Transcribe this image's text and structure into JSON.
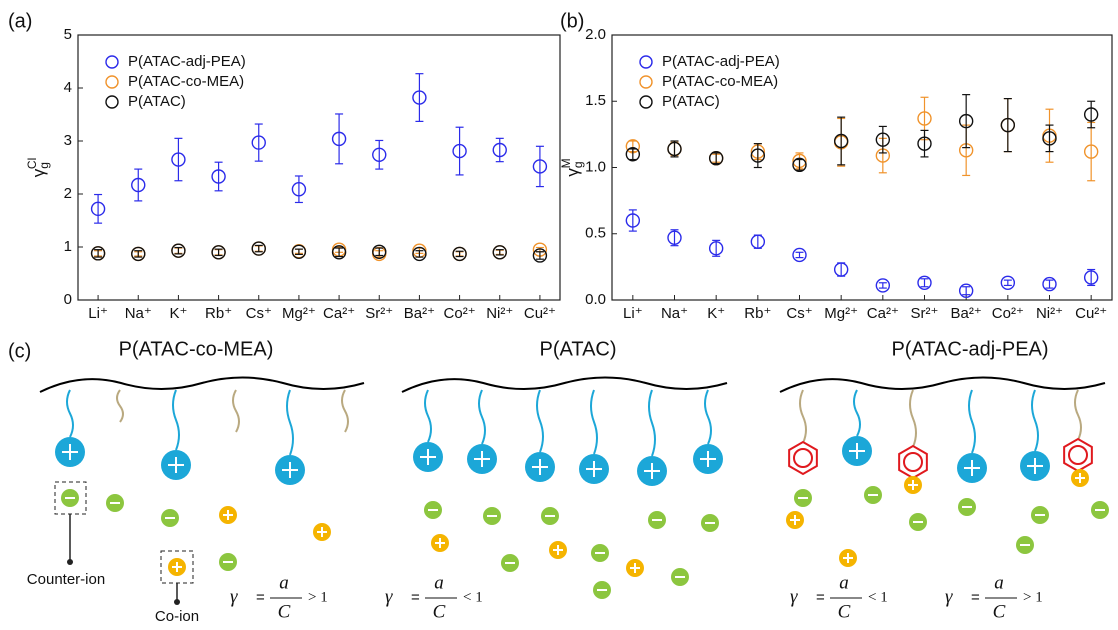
{
  "chart_data": [
    {
      "type": "scatter",
      "panel_label": "(a)",
      "ylabel": {
        "symbol": "γ",
        "sub": "g",
        "sup": "Cl"
      },
      "categories": [
        "Li⁺",
        "Na⁺",
        "K⁺",
        "Rb⁺",
        "Cs⁺",
        "Mg²⁺",
        "Ca²⁺",
        "Sr²⁺",
        "Ba²⁺",
        "Co²⁺",
        "Ni²⁺",
        "Cu²⁺"
      ],
      "ylim": [
        0,
        5
      ],
      "yticks": [
        0,
        1,
        2,
        3,
        4,
        5
      ],
      "legend": "upper left",
      "series": [
        {
          "name": "P(ATAC-adj-PEA)",
          "color": "#2b2bea",
          "values": [
            1.72,
            2.17,
            2.65,
            2.33,
            2.97,
            2.09,
            3.04,
            2.74,
            3.82,
            2.81,
            2.83,
            2.52
          ],
          "errors": [
            0.27,
            0.3,
            0.4,
            0.27,
            0.35,
            0.25,
            0.47,
            0.27,
            0.45,
            0.45,
            0.22,
            0.38
          ]
        },
        {
          "name": "P(ATAC-co-MEA)",
          "color": "#f0932b",
          "values": [
            0.88,
            0.87,
            0.93,
            0.9,
            0.97,
            0.92,
            0.95,
            0.87,
            0.93,
            0.87,
            0.9,
            0.95
          ],
          "errors": [
            0.05,
            0.04,
            0.05,
            0.05,
            0.05,
            0.04,
            0.05,
            0.06,
            0.05,
            0.04,
            0.04,
            0.04
          ]
        },
        {
          "name": "P(ATAC)",
          "color": "#111111",
          "values": [
            0.88,
            0.87,
            0.93,
            0.9,
            0.97,
            0.91,
            0.9,
            0.91,
            0.87,
            0.87,
            0.9,
            0.84
          ],
          "errors": [
            0.07,
            0.06,
            0.06,
            0.06,
            0.06,
            0.05,
            0.08,
            0.07,
            0.06,
            0.05,
            0.05,
            0.07
          ]
        }
      ]
    },
    {
      "type": "scatter",
      "panel_label": "(b)",
      "ylabel": {
        "symbol": "γ",
        "sub": "g",
        "sup": "M"
      },
      "categories": [
        "Li⁺",
        "Na⁺",
        "K⁺",
        "Rb⁺",
        "Cs⁺",
        "Mg²⁺",
        "Ca²⁺",
        "Sr²⁺",
        "Ba²⁺",
        "Co²⁺",
        "Ni²⁺",
        "Cu²⁺"
      ],
      "ylim": [
        0,
        2
      ],
      "yticks": [
        {
          "value": 0,
          "label": "0.0"
        },
        {
          "value": 0.5,
          "label": "0.5"
        },
        {
          "value": 1,
          "label": "1.0"
        },
        {
          "value": 1.5,
          "label": "1.5"
        },
        {
          "value": 2,
          "label": "2.0"
        }
      ],
      "legend": "upper left",
      "series": [
        {
          "name": "P(ATAC-adj-PEA)",
          "color": "#2b2bea",
          "values": [
            0.6,
            0.47,
            0.39,
            0.44,
            0.34,
            0.23,
            0.11,
            0.13,
            0.07,
            0.13,
            0.12,
            0.17
          ],
          "errors": [
            0.08,
            0.06,
            0.06,
            0.05,
            0.02,
            0.05,
            0.02,
            0.03,
            0.03,
            0.02,
            0.03,
            0.06
          ]
        },
        {
          "name": "P(ATAC-co-MEA)",
          "color": "#f0932b",
          "values": [
            1.16,
            1.14,
            1.07,
            1.12,
            1.05,
            1.19,
            1.09,
            1.37,
            1.13,
            1.32,
            1.24,
            1.12
          ],
          "errors": [
            0.04,
            0.05,
            0.03,
            0.06,
            0.06,
            0.18,
            0.13,
            0.16,
            0.19,
            0.2,
            0.2,
            0.22
          ]
        },
        {
          "name": "P(ATAC)",
          "color": "#111111",
          "values": [
            1.1,
            1.14,
            1.07,
            1.09,
            1.02,
            1.2,
            1.21,
            1.18,
            1.35,
            1.32,
            1.22,
            1.4
          ],
          "errors": [
            0.04,
            0.06,
            0.04,
            0.09,
            0.04,
            0.18,
            0.1,
            0.1,
            0.2,
            0.2,
            0.1,
            0.1
          ]
        }
      ]
    }
  ],
  "panel_c": {
    "label": "(c)",
    "titles": [
      "P(ATAC-co-MEA)",
      "P(ATAC)",
      "P(ATAC-adj-PEA)"
    ],
    "counter_ion": "Counter-ion",
    "co_ion": "Co-ion",
    "formulas": [
      {
        "symbol": "γ",
        "num": "a",
        "den": "C",
        "rel": "> 1"
      },
      {
        "symbol": "γ",
        "num": "a",
        "den": "C",
        "rel": "< 1"
      },
      {
        "symbol": "γ",
        "num": "a",
        "den": "C",
        "rel": "< 1"
      },
      {
        "symbol": "γ",
        "num": "a",
        "den": "C",
        "rel": "> 1"
      }
    ]
  }
}
